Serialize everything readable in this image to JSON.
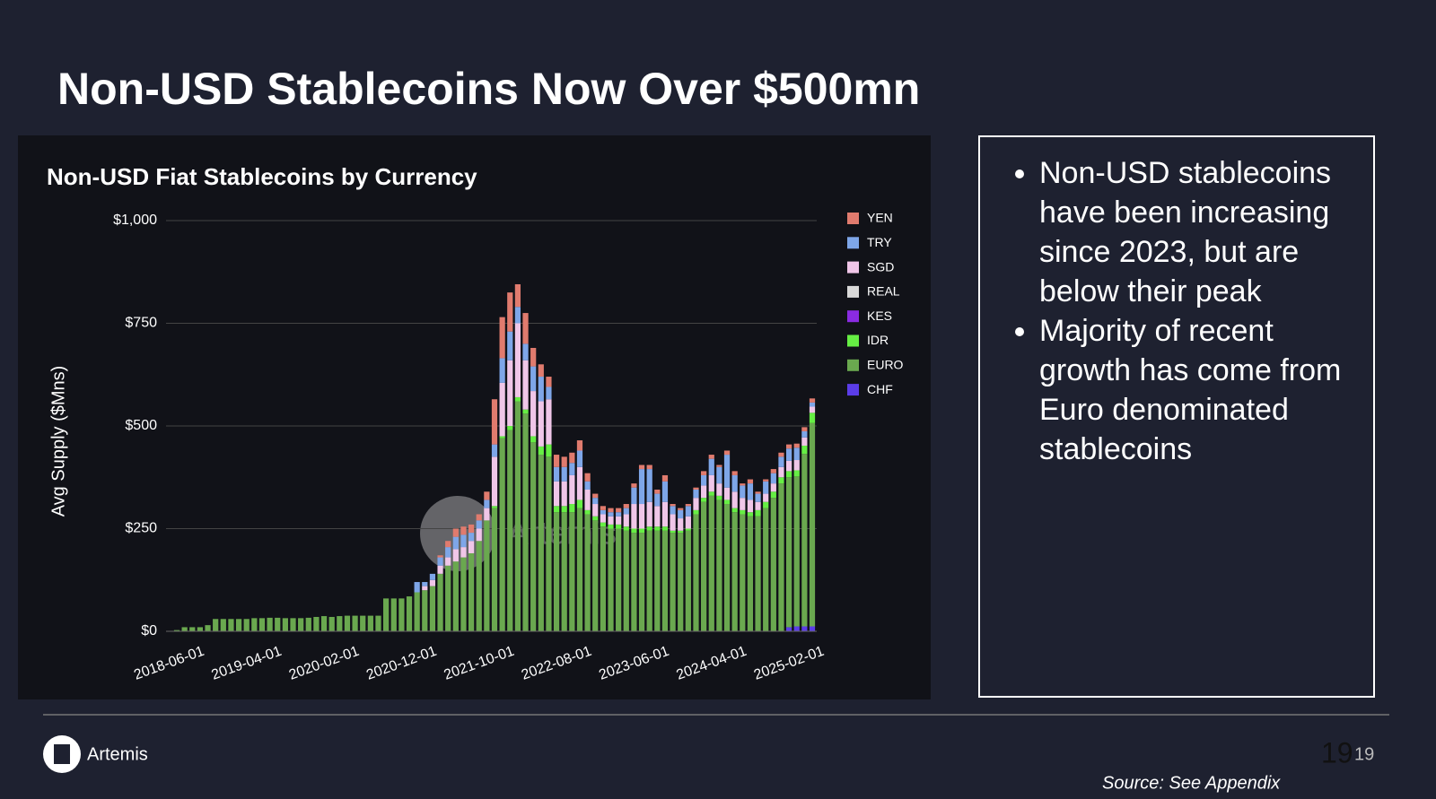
{
  "slide": {
    "title": "Non-USD Stablecoins Now Over $500mn",
    "bullets": [
      "Non-USD stablecoins have been increasing since 2023, but are below their peak",
      "Majority of recent growth has come from Euro denominated stablecoins"
    ],
    "footer": {
      "brand": "Artemis",
      "page_number": "19",
      "page_label": "19",
      "source": "Source: See Appendix"
    }
  },
  "chart_data": {
    "type": "bar",
    "stacked": true,
    "title": "Non-USD Fiat Stablecoins by Currency",
    "ylabel": "Avg Supply ($Mns)",
    "watermark": "Artemis",
    "categories": [
      "2018-06-01",
      null,
      null,
      null,
      null,
      null,
      null,
      null,
      null,
      null,
      "2019-04-01",
      null,
      null,
      null,
      null,
      null,
      null,
      null,
      null,
      null,
      "2020-02-01",
      null,
      null,
      null,
      null,
      null,
      null,
      null,
      null,
      null,
      "2020-12-01",
      null,
      null,
      null,
      null,
      null,
      null,
      null,
      null,
      null,
      "2021-10-01",
      null,
      null,
      null,
      null,
      null,
      null,
      null,
      null,
      null,
      "2022-08-01",
      null,
      null,
      null,
      null,
      null,
      null,
      null,
      null,
      null,
      "2023-06-01",
      null,
      null,
      null,
      null,
      null,
      null,
      null,
      null,
      null,
      "2024-04-01",
      null,
      null,
      null,
      null,
      null,
      null,
      null,
      null,
      null,
      "2025-02-01",
      null,
      null
    ],
    "ylim": [
      0,
      1000
    ],
    "yticks": [
      {
        "value": 0,
        "label": "$0"
      },
      {
        "value": 250,
        "label": "$250"
      },
      {
        "value": 500,
        "label": "$500"
      },
      {
        "value": 750,
        "label": "$750"
      },
      {
        "value": 1000,
        "label": "$1,000"
      }
    ],
    "grid": true,
    "legend": "right",
    "series": [
      {
        "name": "YEN",
        "color": "#e07b6e",
        "values": [
          0,
          0,
          0,
          0,
          0,
          0,
          0,
          0,
          0,
          0,
          0,
          0,
          0,
          0,
          0,
          0,
          0,
          0,
          0,
          0,
          0,
          0,
          0,
          0,
          0,
          0,
          0,
          0,
          0,
          0,
          0,
          0,
          0,
          0,
          5,
          15,
          20,
          20,
          20,
          15,
          20,
          110,
          100,
          95,
          55,
          75,
          45,
          30,
          25,
          30,
          25,
          25,
          25,
          20,
          10,
          10,
          10,
          10,
          10,
          10,
          10,
          10,
          10,
          15,
          5,
          5,
          5,
          5,
          10,
          10,
          5,
          10,
          10,
          5,
          10,
          5,
          5,
          10,
          10,
          10,
          10,
          10,
          10
        ]
      },
      {
        "name": "TRY",
        "color": "#7ea6e8",
        "values": [
          0,
          0,
          0,
          0,
          0,
          0,
          0,
          0,
          0,
          0,
          0,
          0,
          0,
          0,
          0,
          0,
          0,
          0,
          0,
          0,
          0,
          0,
          0,
          0,
          0,
          0,
          0,
          0,
          0,
          0,
          0,
          25,
          10,
          15,
          20,
          25,
          30,
          30,
          20,
          20,
          20,
          30,
          60,
          70,
          40,
          40,
          60,
          60,
          30,
          35,
          35,
          30,
          40,
          20,
          15,
          10,
          10,
          10,
          15,
          40,
          85,
          80,
          30,
          50,
          20,
          20,
          25,
          20,
          25,
          40,
          40,
          80,
          40,
          30,
          40,
          20,
          30,
          25,
          25,
          30,
          30,
          15,
          10
        ]
      },
      {
        "name": "SGD",
        "color": "#f0c6e8",
        "values": [
          0,
          0,
          0,
          0,
          0,
          0,
          0,
          0,
          0,
          0,
          0,
          0,
          0,
          0,
          0,
          0,
          0,
          0,
          0,
          0,
          0,
          0,
          0,
          0,
          0,
          0,
          0,
          0,
          0,
          0,
          0,
          0,
          10,
          15,
          20,
          20,
          30,
          25,
          30,
          30,
          30,
          120,
          130,
          160,
          180,
          120,
          110,
          110,
          110,
          60,
          60,
          70,
          80,
          50,
          30,
          20,
          20,
          20,
          30,
          60,
          60,
          60,
          50,
          60,
          40,
          30,
          30,
          30,
          30,
          40,
          30,
          30,
          40,
          30,
          30,
          20,
          20,
          20,
          25,
          25,
          25,
          20,
          15
        ]
      },
      {
        "name": "REAL",
        "color": "#d9d9d9",
        "values": [
          0,
          0,
          0,
          0,
          0,
          0,
          0,
          0,
          0,
          0,
          0,
          0,
          0,
          0,
          0,
          0,
          0,
          0,
          0,
          0,
          0,
          0,
          0,
          0,
          0,
          0,
          0,
          0,
          0,
          0,
          0,
          0,
          0,
          0,
          0,
          0,
          0,
          0,
          0,
          0,
          0,
          0,
          0,
          0,
          0,
          0,
          0,
          0,
          0,
          0,
          0,
          0,
          0,
          0,
          0,
          0,
          0,
          0,
          0,
          0,
          0,
          0,
          0,
          0,
          0,
          0,
          0,
          0,
          0,
          0,
          0,
          0,
          0,
          0,
          0,
          0,
          0,
          0,
          0,
          0,
          0,
          0,
          0
        ]
      },
      {
        "name": "KES",
        "color": "#8a2be2",
        "values": [
          0,
          0,
          0,
          0,
          0,
          0,
          0,
          0,
          0,
          0,
          0,
          0,
          0,
          0,
          0,
          0,
          0,
          0,
          0,
          0,
          0,
          0,
          0,
          0,
          0,
          0,
          0,
          0,
          0,
          0,
          0,
          0,
          0,
          0,
          0,
          0,
          0,
          0,
          0,
          0,
          0,
          0,
          0,
          0,
          0,
          0,
          0,
          0,
          0,
          0,
          0,
          0,
          0,
          0,
          0,
          0,
          0,
          0,
          0,
          0,
          0,
          0,
          0,
          0,
          0,
          0,
          0,
          0,
          0,
          0,
          0,
          0,
          0,
          0,
          0,
          0,
          0,
          0,
          0,
          0,
          0,
          0,
          0
        ]
      },
      {
        "name": "IDR",
        "color": "#66ee44",
        "values": [
          0,
          0,
          0,
          0,
          0,
          0,
          0,
          0,
          0,
          0,
          0,
          0,
          0,
          0,
          0,
          0,
          0,
          0,
          0,
          0,
          0,
          0,
          0,
          0,
          0,
          0,
          0,
          0,
          0,
          0,
          0,
          0,
          0,
          0,
          0,
          0,
          0,
          0,
          0,
          0,
          0,
          5,
          5,
          10,
          10,
          10,
          15,
          20,
          30,
          15,
          15,
          20,
          20,
          10,
          10,
          10,
          10,
          10,
          10,
          10,
          10,
          10,
          10,
          10,
          5,
          5,
          5,
          10,
          10,
          10,
          10,
          10,
          10,
          10,
          10,
          15,
          15,
          15,
          15,
          15,
          15,
          20,
          25
        ]
      },
      {
        "name": "EURO",
        "color": "#6aa84f",
        "values": [
          3,
          10,
          10,
          10,
          15,
          30,
          30,
          30,
          30,
          30,
          32,
          32,
          33,
          33,
          32,
          32,
          32,
          33,
          35,
          37,
          35,
          37,
          38,
          38,
          38,
          38,
          38,
          80,
          80,
          80,
          85,
          95,
          100,
          110,
          140,
          160,
          170,
          180,
          190,
          220,
          270,
          300,
          470,
          490,
          560,
          530,
          460,
          430,
          425,
          290,
          290,
          290,
          300,
          285,
          270,
          255,
          250,
          250,
          245,
          240,
          240,
          245,
          245,
          245,
          240,
          240,
          245,
          285,
          315,
          330,
          320,
          310,
          290,
          285,
          280,
          280,
          300,
          325,
          360,
          365,
          365,
          420,
          495
        ]
      },
      {
        "name": "CHF",
        "color": "#5b3de8",
        "values": [
          0,
          0,
          0,
          0,
          0,
          0,
          0,
          0,
          0,
          0,
          0,
          0,
          0,
          0,
          0,
          0,
          0,
          0,
          0,
          0,
          0,
          0,
          0,
          0,
          0,
          0,
          0,
          0,
          0,
          0,
          0,
          0,
          0,
          0,
          0,
          0,
          0,
          0,
          0,
          0,
          0,
          0,
          0,
          0,
          0,
          0,
          0,
          0,
          0,
          0,
          0,
          0,
          0,
          0,
          0,
          0,
          0,
          0,
          0,
          0,
          0,
          0,
          0,
          0,
          0,
          0,
          0,
          0,
          0,
          0,
          0,
          0,
          0,
          0,
          0,
          0,
          0,
          0,
          0,
          10,
          12,
          12,
          12
        ]
      }
    ]
  }
}
